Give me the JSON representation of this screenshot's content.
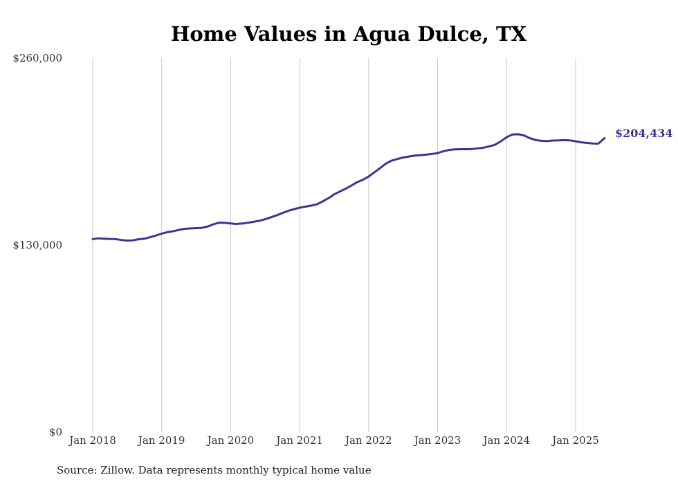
{
  "chart_data": {
    "type": "line",
    "title": "Home Values in Agua Dulce, TX",
    "xlabel": "",
    "ylabel": "",
    "source": "Source: Zillow. Data represents monthly typical home value",
    "ylim": [
      0,
      260000
    ],
    "y_ticks": [
      {
        "value": 0,
        "label": "$0"
      },
      {
        "value": 130000,
        "label": "$130,000"
      },
      {
        "value": 260000,
        "label": "$260,000"
      }
    ],
    "x_ticks": [
      {
        "value": 2018,
        "label": "Jan 2018"
      },
      {
        "value": 2019,
        "label": "Jan 2019"
      },
      {
        "value": 2020,
        "label": "Jan 2020"
      },
      {
        "value": 2021,
        "label": "Jan 2021"
      },
      {
        "value": 2022,
        "label": "Jan 2022"
      },
      {
        "value": 2023,
        "label": "Jan 2023"
      },
      {
        "value": 2024,
        "label": "Jan 2024"
      },
      {
        "value": 2025,
        "label": "Jan 2025"
      }
    ],
    "xlim": [
      2018,
      2025.42
    ],
    "grid": {
      "vertical": true,
      "horizontal": false
    },
    "line_color": "#3a3593",
    "end_label": "$204,434",
    "series": [
      {
        "x": [
          2018.0,
          2018.08,
          2018.17,
          2018.25,
          2018.33,
          2018.42,
          2018.5,
          2018.58,
          2018.67,
          2018.75,
          2018.83,
          2018.92,
          2019.0,
          2019.08,
          2019.17,
          2019.25,
          2019.33,
          2019.42,
          2019.5,
          2019.58,
          2019.67,
          2019.75,
          2019.83,
          2019.92,
          2020.0,
          2020.08,
          2020.17,
          2020.25,
          2020.33,
          2020.42,
          2020.5,
          2020.58,
          2020.67,
          2020.75,
          2020.83,
          2020.92,
          2021.0,
          2021.08,
          2021.17,
          2021.25,
          2021.33,
          2021.42,
          2021.5,
          2021.58,
          2021.67,
          2021.75,
          2021.83,
          2021.92,
          2022.0,
          2022.08,
          2022.17,
          2022.25,
          2022.33,
          2022.42,
          2022.5,
          2022.58,
          2022.67,
          2022.75,
          2022.83,
          2022.92,
          2023.0,
          2023.08,
          2023.17,
          2023.25,
          2023.33,
          2023.42,
          2023.5,
          2023.58,
          2023.67,
          2023.75,
          2023.83,
          2023.92,
          2024.0,
          2024.08,
          2024.17,
          2024.25,
          2024.33,
          2024.42,
          2024.5,
          2024.58,
          2024.67,
          2024.75,
          2024.83,
          2024.92,
          2025.0,
          2025.08,
          2025.17,
          2025.25,
          2025.33,
          2025.42
        ],
        "values": [
          134200,
          134700,
          134500,
          134300,
          134200,
          133500,
          133200,
          133300,
          134100,
          134500,
          135500,
          136700,
          138000,
          139000,
          139700,
          140600,
          141300,
          141600,
          141800,
          142000,
          143000,
          144500,
          145600,
          145500,
          145000,
          144700,
          145000,
          145600,
          146200,
          147000,
          148000,
          149300,
          150800,
          152300,
          153800,
          155000,
          156000,
          156700,
          157500,
          158400,
          160300,
          162700,
          165300,
          167200,
          169300,
          171400,
          173700,
          175500,
          177700,
          180500,
          183700,
          186700,
          188700,
          189900,
          190900,
          191600,
          192300,
          192600,
          192900,
          193400,
          194000,
          195200,
          196200,
          196600,
          196700,
          196700,
          196800,
          197300,
          197800,
          198700,
          199700,
          202300,
          205000,
          206900,
          207100,
          206300,
          204500,
          203100,
          202500,
          202300,
          202700,
          202800,
          203000,
          202800,
          202200,
          201500,
          201000,
          200700,
          200600,
          204434
        ]
      }
    ]
  }
}
